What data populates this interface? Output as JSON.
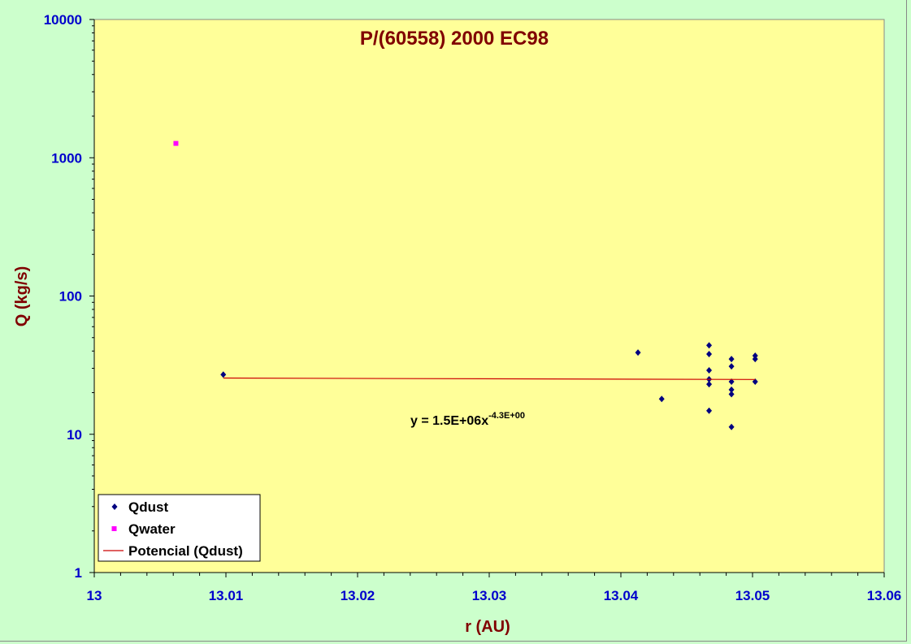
{
  "chart_data": {
    "type": "scatter",
    "title": "P/(60558) 2000 EC98",
    "xlabel": "r (AU)",
    "ylabel": "Q (kg/s)",
    "xlim": [
      13.0,
      13.06
    ],
    "ylim": [
      1,
      10000
    ],
    "y_scale": "log",
    "x_ticks": [
      "13",
      "13.01",
      "13.02",
      "13.03",
      "13.04",
      "13.05",
      "13.06"
    ],
    "x_tick_values": [
      13.0,
      13.01,
      13.02,
      13.03,
      13.04,
      13.05,
      13.06
    ],
    "y_ticks": [
      "1",
      "10",
      "100",
      "1000",
      "10000"
    ],
    "y_tick_values": [
      1,
      10,
      100,
      1000,
      10000
    ],
    "grid": false,
    "plot_background": "#ffff99",
    "figure_background": "#ccffcc",
    "legend_position": "bottom-left",
    "series": [
      {
        "name": "Qdust",
        "marker": "diamond",
        "color": "#000080",
        "points": [
          {
            "x": 13.0098,
            "y": 27
          },
          {
            "x": 13.0413,
            "y": 39
          },
          {
            "x": 13.0431,
            "y": 18
          },
          {
            "x": 13.0467,
            "y": 44
          },
          {
            "x": 13.0467,
            "y": 38
          },
          {
            "x": 13.0467,
            "y": 29
          },
          {
            "x": 13.0467,
            "y": 25
          },
          {
            "x": 13.0467,
            "y": 23
          },
          {
            "x": 13.0467,
            "y": 14.8
          },
          {
            "x": 13.0484,
            "y": 35
          },
          {
            "x": 13.0484,
            "y": 31
          },
          {
            "x": 13.0484,
            "y": 24
          },
          {
            "x": 13.0484,
            "y": 21
          },
          {
            "x": 13.0484,
            "y": 19.5
          },
          {
            "x": 13.0484,
            "y": 11.3
          },
          {
            "x": 13.0502,
            "y": 37
          },
          {
            "x": 13.0502,
            "y": 35
          },
          {
            "x": 13.0502,
            "y": 24
          }
        ]
      },
      {
        "name": "Qwater",
        "marker": "square",
        "color": "#ff00ff",
        "points": [
          {
            "x": 13.0062,
            "y": 1270
          }
        ]
      },
      {
        "name": "Potencial (Qdust)",
        "type": "trendline",
        "color": "#cc0000",
        "points": [
          {
            "x": 13.0098,
            "y": 25.5
          },
          {
            "x": 13.0502,
            "y": 24.9
          }
        ]
      }
    ],
    "annotation": {
      "text": "y = 1.5E+06x",
      "superscript": "-4.3E+00"
    }
  }
}
